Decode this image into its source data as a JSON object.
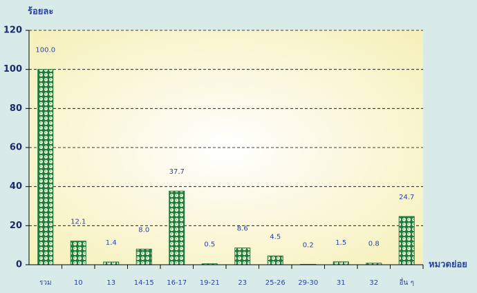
{
  "chart_data": {
    "type": "bar",
    "y_axis_label": "ร้อยละ",
    "x_axis_label": "หมวดย่อย",
    "categories": [
      "รวม",
      "10",
      "13",
      "14-15",
      "16-17",
      "19-21",
      "23",
      "25-26",
      "29-30",
      "31",
      "32",
      "อื่น ๆ"
    ],
    "values": [
      100,
      12.1,
      1.4,
      8,
      37.7,
      0.5,
      8.6,
      4.5,
      0.2,
      1.5,
      0.8,
      24.7
    ],
    "value_labels": [
      "100.0",
      "12.1",
      "1.4",
      "8.0",
      "37.7",
      "0.5",
      "8.6",
      "4.5",
      "0.2",
      "1.5",
      "0.8",
      "24.7"
    ],
    "color": "#1e7a3c",
    "ylim": [
      0,
      120
    ],
    "yticks": [
      0,
      20,
      40,
      60,
      80,
      100,
      120
    ],
    "grid": true
  }
}
